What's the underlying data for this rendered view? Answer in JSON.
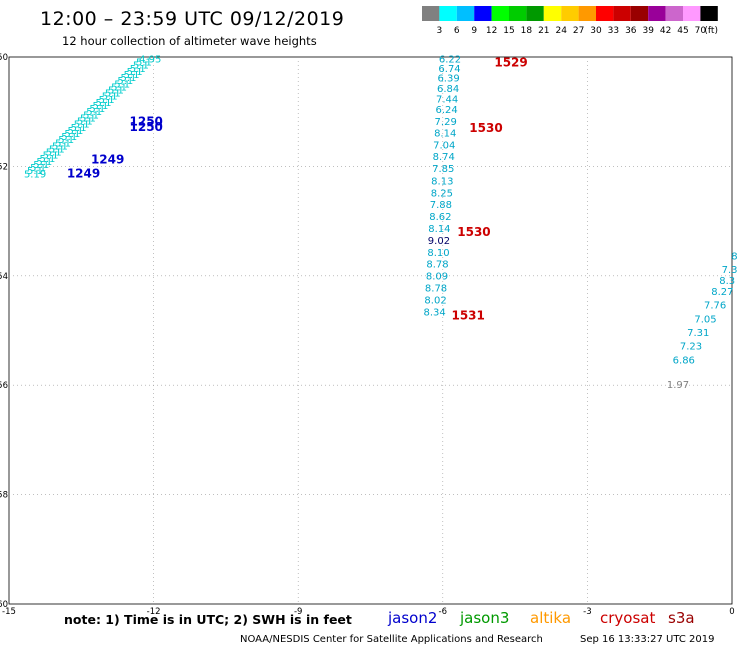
{
  "title": "12:00 – 23:59 UTC 09/12/2019",
  "subtitle": "12 hour collection of altimeter wave heights",
  "legend": {
    "colors": [
      "#808080",
      "#00ffff",
      "#00bfff",
      "#0000ff",
      "#00ff00",
      "#00cc00",
      "#009900",
      "#ffff00",
      "#ffcc00",
      "#ff9900",
      "#ff0000",
      "#cc0000",
      "#990000",
      "#990099",
      "#cc66cc",
      "#ff99ff",
      "#000000"
    ],
    "labels": [
      "3",
      "6",
      "9",
      "12",
      "15",
      "18",
      "21",
      "24",
      "27",
      "30",
      "33",
      "36",
      "39",
      "42",
      "45",
      "70"
    ],
    "unit": "(ft)"
  },
  "note": "note: 1) Time is in UTC; 2) SWH is in feet",
  "satellites": [
    {
      "name": "jason2",
      "color": "#0000cc"
    },
    {
      "name": "jason3",
      "color": "#009900"
    },
    {
      "name": "altika",
      "color": "#ff9900"
    },
    {
      "name": "cryosat",
      "color": "#cc0000"
    },
    {
      "name": "s3a",
      "color": "#990000"
    }
  ],
  "footer": "NOAA/NESDIS Center for Satellite Applications and Research",
  "footer_timestamp": "Sep 16 13:33:27 UTC 2019",
  "chart_data": {
    "type": "scatter",
    "xlim": [
      -15,
      0
    ],
    "ylim": [
      -60,
      -50
    ],
    "x_ticks": [
      "-15",
      "-12",
      "-9",
      "-6",
      "-3",
      "0"
    ],
    "y_ticks": [
      "-50",
      "-52",
      "-54",
      "-56",
      "-58",
      "-60"
    ],
    "grid": true,
    "track_a": {
      "satellite": "jason2",
      "color": "#00cccc",
      "points": [
        {
          "x": -14.69,
          "y": -52.2,
          "v": "5.19"
        },
        {
          "x": -12.3,
          "y": -50.1,
          "v": "4.95"
        }
      ],
      "time_labels": [
        {
          "x": -12.5,
          "y": -51.25,
          "t": "1250"
        },
        {
          "x": -12.5,
          "y": -51.35,
          "t": "1250"
        },
        {
          "x": -13.3,
          "y": -51.95,
          "t": "1249"
        },
        {
          "x": -13.8,
          "y": -52.2,
          "t": "1249"
        }
      ]
    },
    "track_b": {
      "satellite": "cryosat",
      "color": "#00a6c8",
      "points": [
        {
          "x": -5.85,
          "y": -50.1,
          "v": "6.22"
        },
        {
          "x": -5.86,
          "y": -50.27,
          "v": "6.74"
        },
        {
          "x": -5.88,
          "y": -50.45,
          "v": "6.39"
        },
        {
          "x": -5.89,
          "y": -50.64,
          "v": "6.84"
        },
        {
          "x": -5.91,
          "y": -50.83,
          "v": "7.44"
        },
        {
          "x": -5.92,
          "y": -51.02,
          "v": "6.24"
        },
        {
          "x": -5.94,
          "y": -51.24,
          "v": "7.29"
        },
        {
          "x": -5.95,
          "y": -51.45,
          "v": "8.14"
        },
        {
          "x": -5.97,
          "y": -51.67,
          "v": "7.04"
        },
        {
          "x": -5.98,
          "y": -51.88,
          "v": "8.74"
        },
        {
          "x": -5.99,
          "y": -52.1,
          "v": "7.85"
        },
        {
          "x": -6.01,
          "y": -52.33,
          "v": "8.13"
        },
        {
          "x": -6.02,
          "y": -52.55,
          "v": "8.25"
        },
        {
          "x": -6.04,
          "y": -52.76,
          "v": "7.88"
        },
        {
          "x": -6.05,
          "y": -52.98,
          "v": "8.62"
        },
        {
          "x": -6.07,
          "y": -53.2,
          "v": "8.14"
        },
        {
          "x": -6.08,
          "y": -53.42,
          "v": "9.02",
          "highlight": true
        },
        {
          "x": -6.09,
          "y": -53.64,
          "v": "8.10"
        },
        {
          "x": -6.11,
          "y": -53.85,
          "v": "8.78"
        },
        {
          "x": -6.12,
          "y": -54.07,
          "v": "8.09"
        },
        {
          "x": -6.14,
          "y": -54.29,
          "v": "8.78"
        },
        {
          "x": -6.15,
          "y": -54.51,
          "v": "8.02"
        },
        {
          "x": -6.17,
          "y": -54.73,
          "v": "8.34"
        }
      ],
      "time_labels": [
        {
          "x": -4.93,
          "y": -50.1,
          "t": "1529"
        },
        {
          "x": -5.45,
          "y": -51.3,
          "t": "1530"
        },
        {
          "x": -5.7,
          "y": -53.2,
          "t": "1530"
        },
        {
          "x": -5.82,
          "y": -54.73,
          "t": "1531"
        }
      ]
    },
    "track_c": {
      "satellite": "cryosat",
      "color": "#00a6c8",
      "points": [
        {
          "x": 0.05,
          "y": -53.7,
          "v": "8"
        },
        {
          "x": -0.05,
          "y": -53.95,
          "v": "7.3"
        },
        {
          "x": -0.1,
          "y": -54.15,
          "v": "8.3"
        },
        {
          "x": -0.2,
          "y": -54.35,
          "v": "8.27"
        },
        {
          "x": -0.35,
          "y": -54.6,
          "v": "7.76"
        },
        {
          "x": -0.55,
          "y": -54.85,
          "v": "7.05"
        },
        {
          "x": -0.7,
          "y": -55.1,
          "v": "7.31"
        },
        {
          "x": -0.85,
          "y": -55.35,
          "v": "7.23"
        },
        {
          "x": -1.0,
          "y": -55.6,
          "v": "6.86"
        },
        {
          "x": -1.12,
          "y": -56.05,
          "v": "1.97",
          "color": "#808080"
        }
      ]
    }
  }
}
